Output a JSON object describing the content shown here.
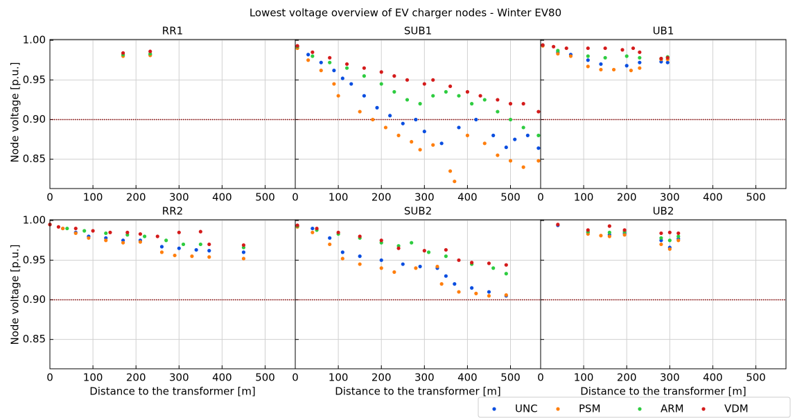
{
  "chart_data": {
    "type": "scatter",
    "title": "Lowest voltage overview of EV charger nodes - Winter EV80",
    "xlabel": "Distance to the transformer [m]",
    "ylabel": "Node voltage [p.u.]",
    "xlim": [
      0,
      570
    ],
    "ylim": [
      0.813,
      1.001
    ],
    "xticks": [
      0,
      100,
      200,
      300,
      400,
      500
    ],
    "yticks": [
      0.85,
      {
        "value": 0.9,
        "label": "0.90"
      },
      0.95,
      {
        "value": 1,
        "label": "1.00"
      }
    ],
    "grid": true,
    "threshold": {
      "value": 0.9,
      "color": "#8b0000"
    },
    "legend": {
      "position": "lower right",
      "entries": [
        {
          "name": "UNC",
          "color": "#0a4ee0"
        },
        {
          "name": "PSM",
          "color": "#ff7f0e"
        },
        {
          "name": "ARM",
          "color": "#2ecc40"
        },
        {
          "name": "VDM",
          "color": "#d41b1b"
        }
      ]
    },
    "subplots": [
      {
        "title": "RR1",
        "series": [
          {
            "x": [
              170,
              233
            ],
            "values": [
              0.981,
              0.982
            ]
          },
          {
            "x": [
              170,
              233
            ],
            "values": [
              0.98,
              0.981
            ]
          },
          {
            "x": [
              170,
              233
            ],
            "values": [
              0.982,
              0.983
            ]
          },
          {
            "x": [
              170,
              233
            ],
            "values": [
              0.984,
              0.986
            ]
          }
        ]
      },
      {
        "title": "SUB1",
        "series": [
          {
            "x": [
              5,
              30,
              60,
              90,
              110,
              130,
              160,
              190,
              220,
              250,
              280,
              300,
              340,
              380,
              420,
              460,
              490,
              510,
              540,
              565
            ],
            "values": [
              0.992,
              0.982,
              0.972,
              0.962,
              0.952,
              0.945,
              0.93,
              0.915,
              0.905,
              0.895,
              0.9,
              0.885,
              0.87,
              0.89,
              0.9,
              0.88,
              0.865,
              0.875,
              0.88,
              0.864
            ]
          },
          {
            "x": [
              5,
              30,
              60,
              90,
              100,
              150,
              180,
              210,
              240,
              270,
              290,
              320,
              360,
              370,
              400,
              440,
              470,
              500,
              530,
              565
            ],
            "values": [
              0.99,
              0.975,
              0.962,
              0.945,
              0.93,
              0.91,
              0.9,
              0.89,
              0.88,
              0.872,
              0.862,
              0.868,
              0.835,
              0.822,
              0.88,
              0.87,
              0.855,
              0.848,
              0.84,
              0.848
            ]
          },
          {
            "x": [
              5,
              40,
              80,
              120,
              160,
              200,
              230,
              260,
              290,
              320,
              350,
              380,
              410,
              440,
              470,
              500,
              530,
              565
            ],
            "values": [
              0.992,
              0.98,
              0.972,
              0.965,
              0.955,
              0.945,
              0.935,
              0.925,
              0.92,
              0.93,
              0.935,
              0.93,
              0.92,
              0.925,
              0.91,
              0.9,
              0.89,
              0.88
            ]
          },
          {
            "x": [
              5,
              40,
              80,
              120,
              160,
              200,
              230,
              260,
              300,
              320,
              360,
              400,
              430,
              470,
              500,
              530,
              565
            ],
            "values": [
              0.993,
              0.985,
              0.978,
              0.97,
              0.965,
              0.96,
              0.955,
              0.95,
              0.945,
              0.95,
              0.942,
              0.935,
              0.93,
              0.925,
              0.92,
              0.92,
              0.91
            ]
          }
        ]
      },
      {
        "title": "UB1",
        "series": [
          {
            "x": [
              5,
              40,
              70,
              110,
              140,
              200,
              230,
              280,
              295
            ],
            "values": [
              0.994,
              0.985,
              0.982,
              0.975,
              0.97,
              0.968,
              0.972,
              0.973,
              0.972
            ]
          },
          {
            "x": [
              5,
              40,
              70,
              110,
              140,
              170,
              210,
              230,
              280,
              295
            ],
            "values": [
              0.993,
              0.983,
              0.98,
              0.967,
              0.963,
              0.963,
              0.962,
              0.965,
              0.976,
              0.976
            ]
          },
          {
            "x": [
              5,
              40,
              110,
              150,
              200,
              230,
              280,
              295
            ],
            "values": [
              0.994,
              0.987,
              0.98,
              0.978,
              0.98,
              0.978,
              0.977,
              0.979
            ]
          },
          {
            "x": [
              5,
              30,
              60,
              110,
              150,
              190,
              215,
              230,
              280,
              295
            ],
            "values": [
              0.994,
              0.992,
              0.99,
              0.99,
              0.99,
              0.988,
              0.99,
              0.985,
              0.977,
              0.978
            ]
          }
        ]
      },
      {
        "title": "RR2",
        "series": [
          {
            "x": [
              0,
              30,
              60,
              90,
              130,
              170,
              210,
              260,
              300,
              340,
              370,
              450
            ],
            "values": [
              0.995,
              0.99,
              0.985,
              0.98,
              0.978,
              0.975,
              0.975,
              0.967,
              0.965,
              0.963,
              0.962,
              0.96
            ]
          },
          {
            "x": [
              0,
              30,
              60,
              90,
              130,
              170,
              210,
              260,
              290,
              330,
              370,
              450
            ],
            "values": [
              0.995,
              0.99,
              0.984,
              0.978,
              0.975,
              0.972,
              0.973,
              0.96,
              0.956,
              0.955,
              0.954,
              0.952
            ]
          },
          {
            "x": [
              0,
              40,
              80,
              130,
              180,
              220,
              270,
              310,
              350,
              450
            ],
            "values": [
              0.995,
              0.99,
              0.987,
              0.984,
              0.982,
              0.98,
              0.975,
              0.97,
              0.97,
              0.966
            ]
          },
          {
            "x": [
              0,
              20,
              60,
              100,
              140,
              180,
              210,
              250,
              300,
              350,
              370,
              450
            ],
            "values": [
              0.995,
              0.992,
              0.99,
              0.987,
              0.985,
              0.985,
              0.983,
              0.98,
              0.985,
              0.986,
              0.97,
              0.969
            ]
          }
        ]
      },
      {
        "title": "SUB2",
        "series": [
          {
            "x": [
              5,
              40,
              80,
              110,
              150,
              200,
              250,
              290,
              330,
              350,
              370,
              410,
              450,
              490
            ],
            "values": [
              0.993,
              0.99,
              0.978,
              0.96,
              0.955,
              0.95,
              0.945,
              0.942,
              0.94,
              0.93,
              0.92,
              0.915,
              0.91,
              0.905
            ]
          },
          {
            "x": [
              5,
              40,
              80,
              110,
              150,
              200,
              230,
              280,
              330,
              340,
              380,
              420,
              450,
              490
            ],
            "values": [
              0.992,
              0.985,
              0.97,
              0.952,
              0.945,
              0.94,
              0.935,
              0.94,
              0.942,
              0.92,
              0.91,
              0.908,
              0.905,
              0.906
            ]
          },
          {
            "x": [
              5,
              50,
              100,
              150,
              200,
              240,
              270,
              310,
              350,
              410,
              460,
              490
            ],
            "values": [
              0.993,
              0.988,
              0.983,
              0.978,
              0.972,
              0.968,
              0.972,
              0.96,
              0.955,
              0.945,
              0.94,
              0.933
            ]
          },
          {
            "x": [
              5,
              50,
              100,
              150,
              200,
              240,
              300,
              350,
              380,
              410,
              450,
              490
            ],
            "values": [
              0.994,
              0.99,
              0.985,
              0.98,
              0.975,
              0.965,
              0.962,
              0.963,
              0.95,
              0.947,
              0.946,
              0.944
            ]
          }
        ]
      },
      {
        "title": "UB2",
        "series": [
          {
            "x": [
              40,
              110,
              160,
              195,
              280,
              300,
              320
            ],
            "values": [
              0.994,
              0.985,
              0.982,
              0.984,
              0.975,
              0.966,
              0.977
            ]
          },
          {
            "x": [
              110,
              140,
              160,
              195,
              280,
              300,
              320
            ],
            "values": [
              0.983,
              0.981,
              0.98,
              0.982,
              0.97,
              0.964,
              0.975
            ]
          },
          {
            "x": [
              110,
              160,
              195,
              280,
              300,
              320
            ],
            "values": [
              0.986,
              0.985,
              0.986,
              0.978,
              0.975,
              0.98
            ]
          },
          {
            "x": [
              40,
              110,
              160,
              195,
              280,
              300,
              320
            ],
            "values": [
              0.995,
              0.988,
              0.993,
              0.988,
              0.984,
              0.985,
              0.984
            ]
          }
        ]
      }
    ]
  }
}
